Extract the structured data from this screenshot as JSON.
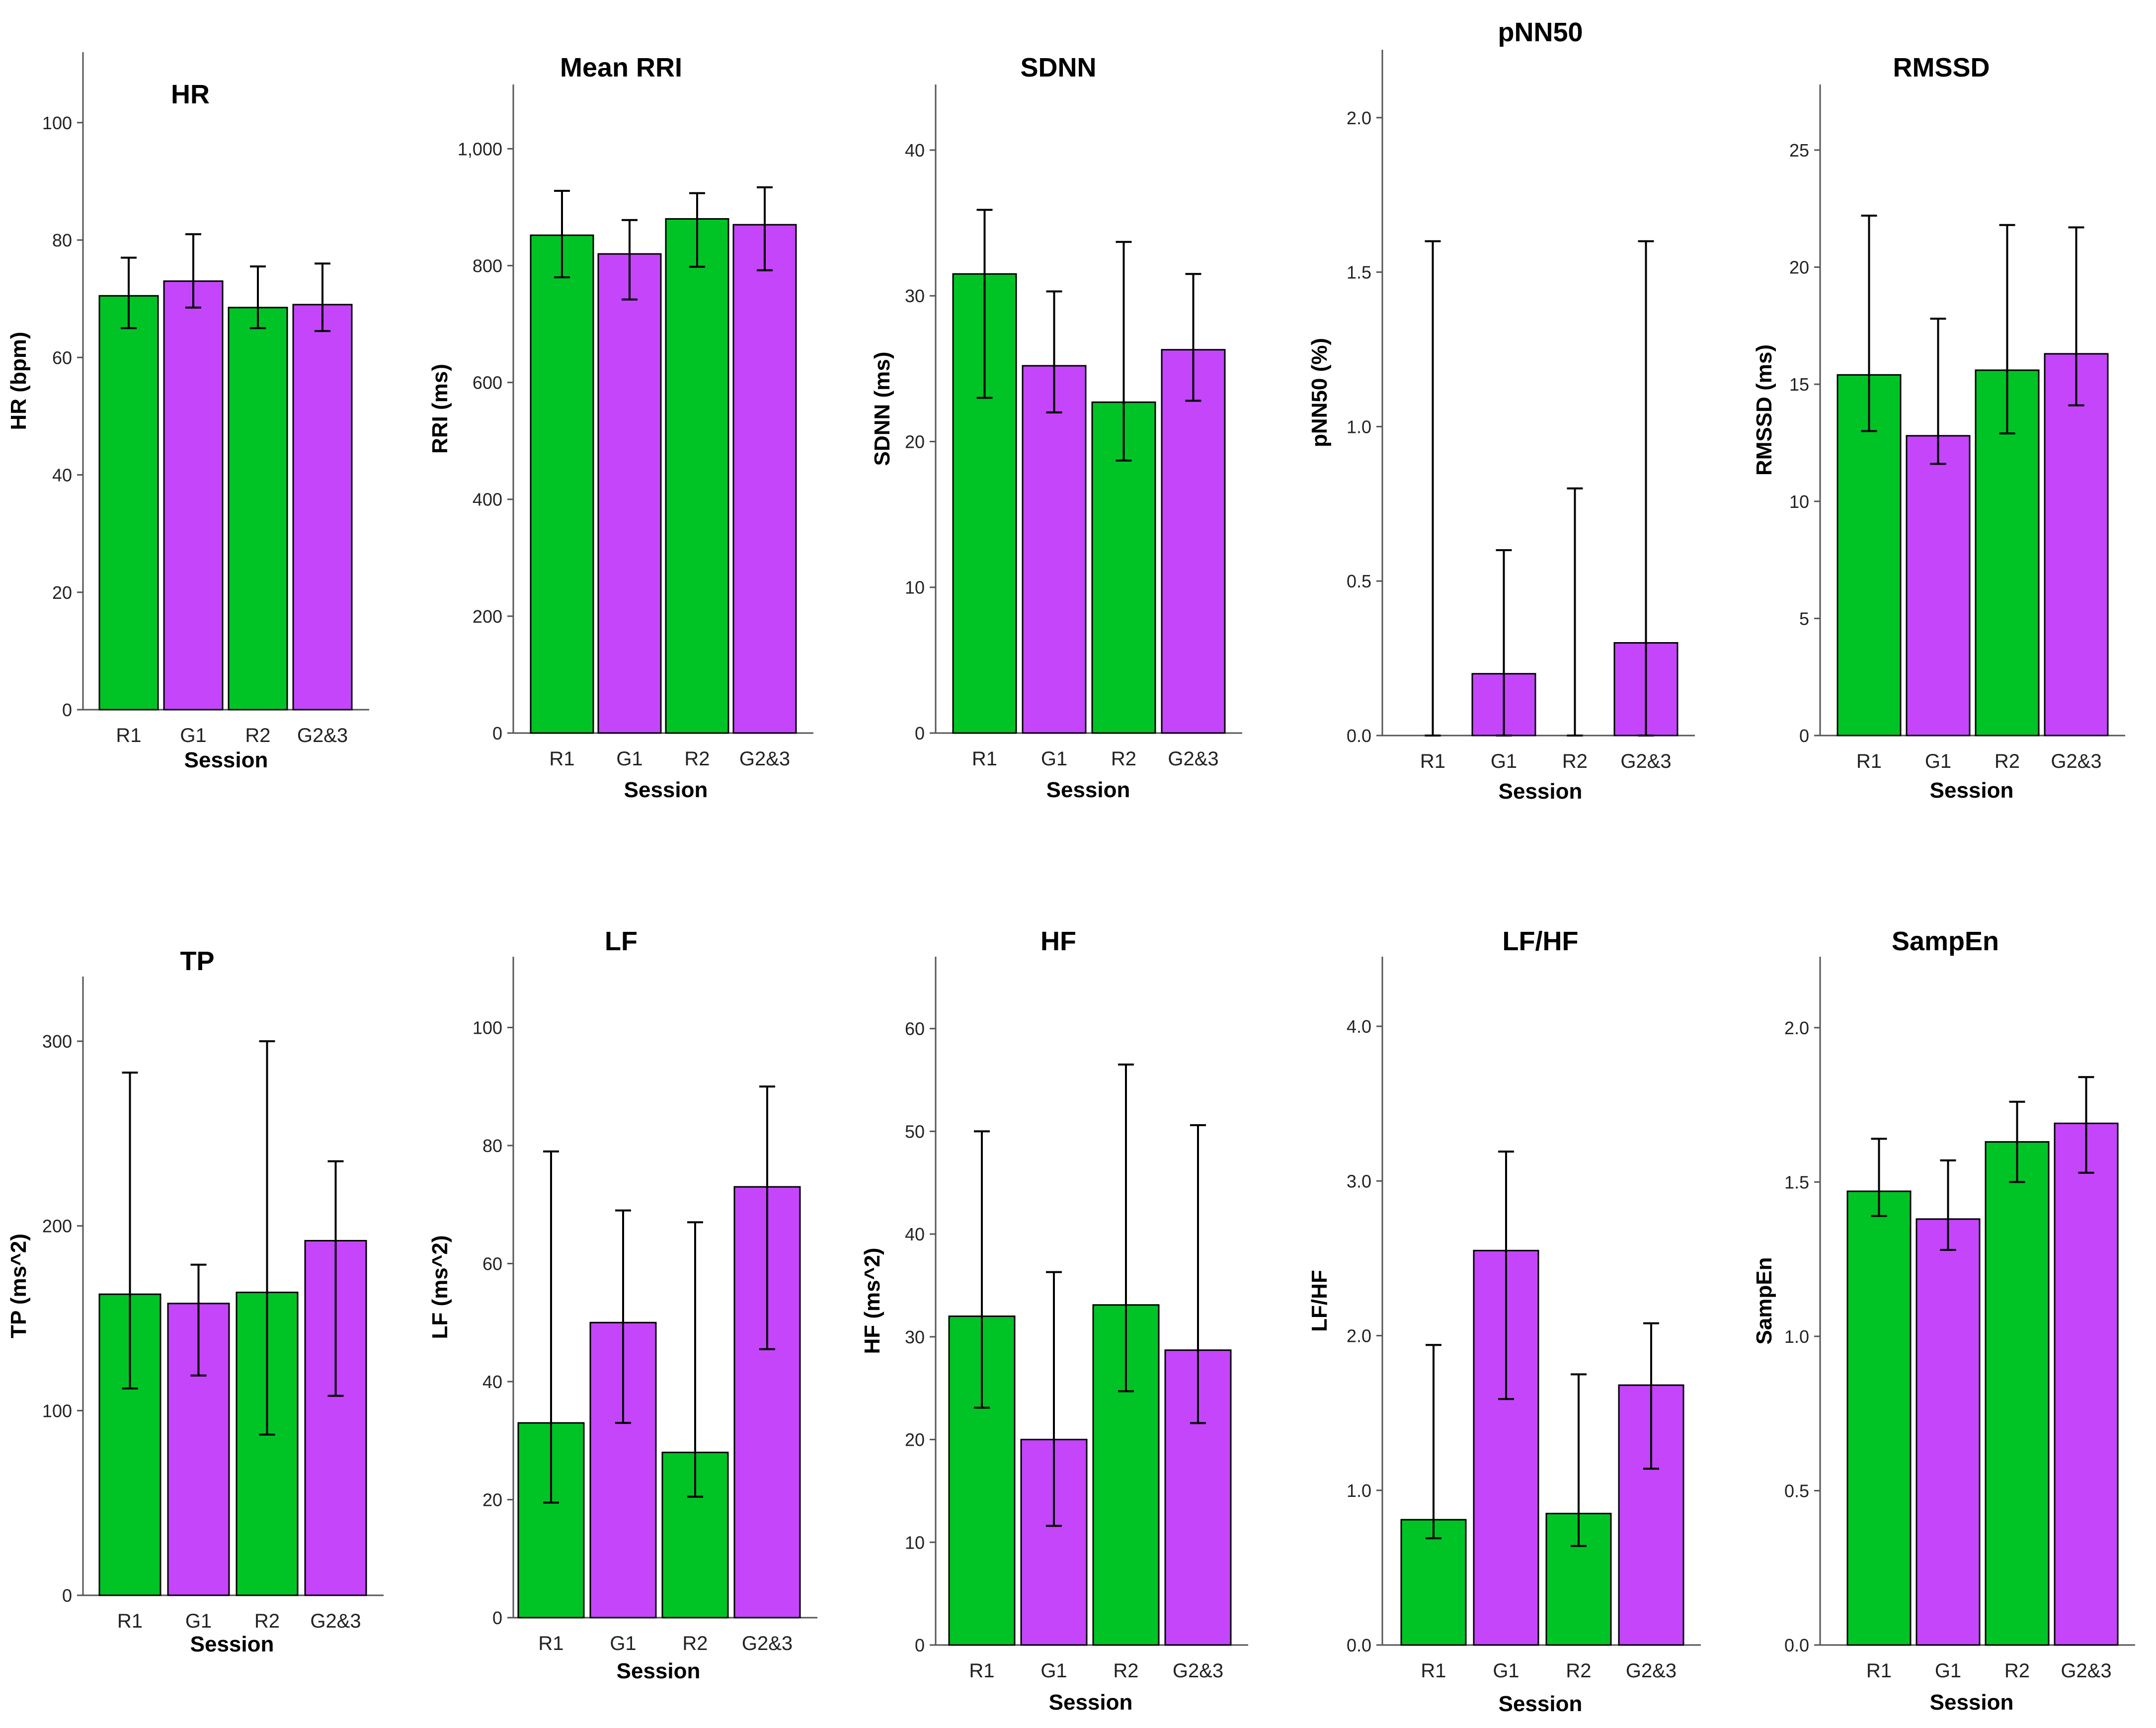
{
  "colors": {
    "R": "#00c425",
    "G": "#c545fb"
  },
  "session_label": "Session",
  "chart_data": [
    {
      "type": "bar",
      "title": "HR",
      "ylabel": "HR (bpm)",
      "xlabel": "Session",
      "categories": [
        "R1",
        "G1",
        "R2",
        "G2&3"
      ],
      "values": [
        70.5,
        73,
        68.5,
        69
      ],
      "error_low": [
        65,
        68.5,
        65,
        64.5
      ],
      "error_high": [
        77,
        81,
        75.5,
        76
      ],
      "ylim": [
        0,
        112
      ],
      "ticks": [
        0,
        20,
        40,
        60,
        80,
        100
      ],
      "tick_labels": [
        "0",
        "20",
        "40",
        "60",
        "80",
        "100"
      ]
    },
    {
      "type": "bar",
      "title": "Mean RRI",
      "ylabel": "RRI (ms)",
      "xlabel": "Session",
      "categories": [
        "R1",
        "G1",
        "R2",
        "G2&3"
      ],
      "values": [
        852,
        820,
        880,
        870
      ],
      "error_low": [
        780,
        742,
        798,
        792
      ],
      "error_high": [
        928,
        878,
        924,
        934
      ],
      "ylim": [
        0,
        1110
      ],
      "ticks": [
        0,
        200,
        400,
        600,
        800,
        1000
      ],
      "tick_labels": [
        "0",
        "200",
        "400",
        "600",
        "800",
        "1,000"
      ]
    },
    {
      "type": "bar",
      "title": "SDNN",
      "ylabel": "SDNN (ms)",
      "xlabel": "Session",
      "categories": [
        "R1",
        "G1",
        "R2",
        "G2&3"
      ],
      "values": [
        31.5,
        25.2,
        22.7,
        26.3
      ],
      "error_low": [
        23,
        22,
        18.7,
        22.8
      ],
      "error_high": [
        35.9,
        30.3,
        33.7,
        31.5
      ],
      "ylim": [
        0,
        44.5
      ],
      "ticks": [
        0,
        10,
        20,
        30,
        40
      ],
      "tick_labels": [
        "0",
        "10",
        "20",
        "30",
        "40"
      ]
    },
    {
      "type": "bar",
      "title": "pNN50",
      "ylabel": "pNN50 (%)",
      "xlabel": "Session",
      "categories": [
        "R1",
        "G1",
        "R2",
        "G2&3"
      ],
      "values": [
        0,
        0.2,
        0,
        0.3
      ],
      "error_low": [
        0,
        0,
        0,
        0
      ],
      "error_high": [
        1.6,
        0.6,
        0.8,
        1.6
      ],
      "ylim": [
        0,
        2.22
      ],
      "ticks": [
        0,
        0.5,
        1.0,
        1.5,
        2.0
      ],
      "tick_labels": [
        "0.0",
        "0.5",
        "1.0",
        "1.5",
        "2.0"
      ]
    },
    {
      "type": "bar",
      "title": "RMSSD",
      "ylabel": "RMSSD (ms)",
      "xlabel": "Session",
      "categories": [
        "R1",
        "G1",
        "R2",
        "G2&3"
      ],
      "values": [
        15.4,
        12.8,
        15.6,
        16.3
      ],
      "error_low": [
        13,
        11.6,
        12.9,
        14.1
      ],
      "error_high": [
        22.2,
        17.8,
        21.8,
        21.7
      ],
      "ylim": [
        0,
        27.8
      ],
      "ticks": [
        0,
        5,
        10,
        15,
        20,
        25
      ],
      "tick_labels": [
        "0",
        "5",
        "10",
        "15",
        "20",
        "25"
      ]
    },
    {
      "type": "bar",
      "title": "TP",
      "ylabel": "TP (ms^2)",
      "xlabel": "Session",
      "categories": [
        "R1",
        "G1",
        "R2",
        "G2&3"
      ],
      "values": [
        163,
        158,
        164,
        192
      ],
      "error_low": [
        112,
        119,
        87,
        108
      ],
      "error_high": [
        283,
        179,
        300,
        235
      ],
      "ylim": [
        0,
        335
      ],
      "ticks": [
        0,
        100,
        200,
        300
      ],
      "tick_labels": [
        "0",
        "100",
        "200",
        "300"
      ]
    },
    {
      "type": "bar",
      "title": "LF",
      "ylabel": "LF (ms^2)",
      "xlabel": "Session",
      "categories": [
        "R1",
        "G1",
        "R2",
        "G2&3"
      ],
      "values": [
        33,
        50,
        28,
        73
      ],
      "error_low": [
        19.5,
        33,
        20.5,
        45.5
      ],
      "error_high": [
        79,
        69,
        67,
        90
      ],
      "ylim": [
        0,
        112
      ],
      "ticks": [
        0,
        20,
        40,
        60,
        80,
        100
      ],
      "tick_labels": [
        "0",
        "20",
        "40",
        "60",
        "80",
        "100"
      ]
    },
    {
      "type": "bar",
      "title": "HF",
      "ylabel": "HF (ms^2)",
      "xlabel": "Session",
      "categories": [
        "R1",
        "G1",
        "R2",
        "G2&3"
      ],
      "values": [
        32,
        20,
        33.1,
        28.7
      ],
      "error_low": [
        23.1,
        11.6,
        24.7,
        21.6
      ],
      "error_high": [
        50,
        36.3,
        56.5,
        50.6
      ],
      "ylim": [
        0,
        67
      ],
      "ticks": [
        0,
        10,
        20,
        30,
        40,
        50,
        60
      ],
      "tick_labels": [
        "0",
        "10",
        "20",
        "30",
        "40",
        "50",
        "60"
      ]
    },
    {
      "type": "bar",
      "title": "LF/HF",
      "ylabel": "LF/HF",
      "xlabel": "Session",
      "categories": [
        "R1",
        "G1",
        "R2",
        "G2&3"
      ],
      "values": [
        0.81,
        2.55,
        0.85,
        1.68
      ],
      "error_low": [
        0.69,
        1.59,
        0.64,
        1.14
      ],
      "error_high": [
        1.94,
        3.19,
        1.75,
        2.08
      ],
      "ylim": [
        0,
        4.45
      ],
      "ticks": [
        0,
        1.0,
        2.0,
        3.0,
        4.0
      ],
      "tick_labels": [
        "0.0",
        "1.0",
        "2.0",
        "3.0",
        "4.0"
      ]
    },
    {
      "type": "bar",
      "title": "SampEn",
      "ylabel": "SampEn",
      "xlabel": "Session",
      "categories": [
        "R1",
        "G1",
        "R2",
        "G2&3"
      ],
      "values": [
        1.47,
        1.38,
        1.63,
        1.69
      ],
      "error_low": [
        1.39,
        1.28,
        1.5,
        1.53
      ],
      "error_high": [
        1.64,
        1.57,
        1.76,
        1.84
      ],
      "ylim": [
        0,
        2.23
      ],
      "ticks": [
        0,
        0.5,
        1.0,
        1.5,
        2.0
      ],
      "tick_labels": [
        "0.0",
        "0.5",
        "1.0",
        "1.5",
        "2.0"
      ]
    }
  ]
}
